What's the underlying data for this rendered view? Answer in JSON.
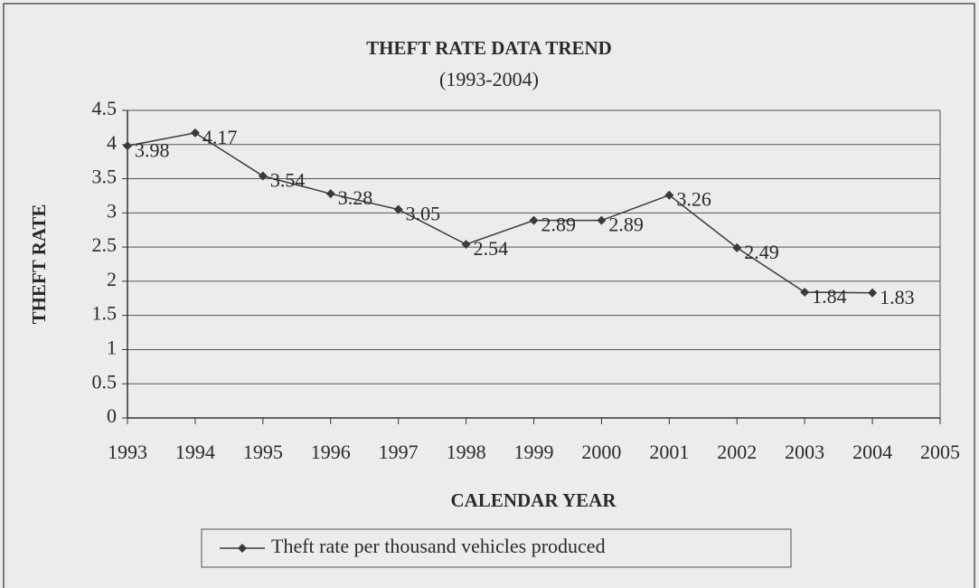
{
  "chart_data": {
    "type": "line",
    "title": "THEFT RATE DATA TREND",
    "subtitle": "(1993-2004)",
    "x_label": "CALENDAR YEAR",
    "y_label": "THEFT RATE",
    "x": [
      1993,
      1994,
      1995,
      1996,
      1997,
      1998,
      1999,
      2000,
      2001,
      2002,
      2003,
      2004
    ],
    "series": [
      {
        "name": "Theft rate per thousand vehicles produced",
        "color": "#3a3a3a",
        "values": [
          3.98,
          4.17,
          3.54,
          3.28,
          3.05,
          2.54,
          2.89,
          2.89,
          3.26,
          2.49,
          1.84,
          1.83
        ]
      }
    ],
    "xlim": [
      1993,
      2005
    ],
    "xticks": [
      1993,
      1994,
      1995,
      1996,
      1997,
      1998,
      1999,
      2000,
      2001,
      2002,
      2003,
      2004,
      2005
    ],
    "ylim": [
      0,
      4.5
    ],
    "yticks": [
      0,
      0.5,
      1,
      1.5,
      2,
      2.5,
      3,
      3.5,
      4,
      4.5
    ],
    "grid": true,
    "legend": "bottom"
  }
}
